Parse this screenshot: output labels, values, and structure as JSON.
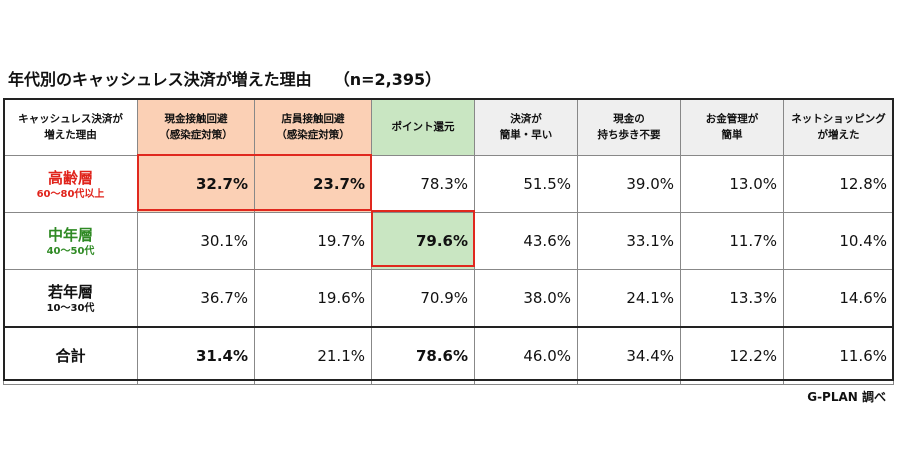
{
  "title": "年代別のキャッシュレス決済が増えた理由",
  "n_label": "（n=2,395）",
  "source": "G-PLAN 調べ",
  "chart_data": {
    "type": "table",
    "corner_header": [
      "キャッシュレス決済が",
      "増えた理由"
    ],
    "columns": [
      {
        "lines": [
          "現金接触回避",
          "（感染症対策）"
        ]
      },
      {
        "lines": [
          "店員接触回避",
          "（感染症対策）"
        ]
      },
      {
        "lines": [
          "ポイント還元"
        ]
      },
      {
        "lines": [
          "決済が",
          "簡単・早い"
        ]
      },
      {
        "lines": [
          "現金の",
          "持ち歩き不要"
        ]
      },
      {
        "lines": [
          "お金管理が",
          "簡単"
        ]
      },
      {
        "lines": [
          "ネットショッピング",
          "が増えた"
        ]
      }
    ],
    "rows": [
      {
        "label": "高齢層",
        "sub": "60～80代以上",
        "values": [
          "32.7%",
          "23.7%",
          "78.3%",
          "51.5%",
          "39.0%",
          "13.0%",
          "12.8%"
        ]
      },
      {
        "label": "中年層",
        "sub": "40～50代",
        "values": [
          "30.1%",
          "19.7%",
          "79.6%",
          "43.6%",
          "33.1%",
          "11.7%",
          "10.4%"
        ]
      },
      {
        "label": "若年層",
        "sub": "10～30代",
        "values": [
          "36.7%",
          "19.6%",
          "70.9%",
          "38.0%",
          "24.1%",
          "13.3%",
          "14.6%"
        ]
      },
      {
        "label": "合計",
        "sub": "",
        "values": [
          "31.4%",
          "21.1%",
          "78.6%",
          "46.0%",
          "34.4%",
          "12.2%",
          "11.6%"
        ]
      }
    ],
    "highlight_colors": {
      "red": "#e0281e",
      "red_fill": "#fbd0b5",
      "green": "#2f8a24",
      "green_fill": "#c9e6c2"
    }
  }
}
